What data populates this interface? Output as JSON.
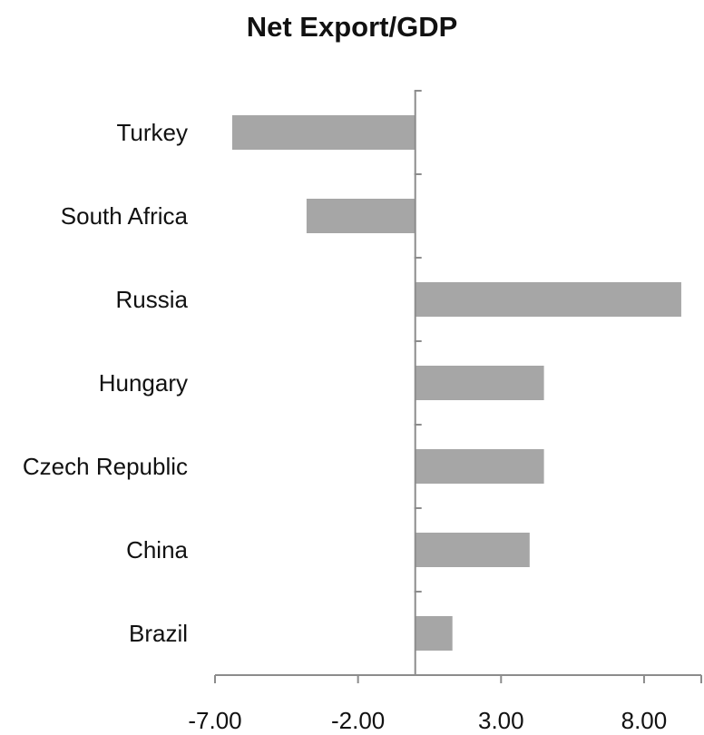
{
  "chart_data": {
    "type": "bar",
    "orientation": "horizontal",
    "title": "Net Export/GDP",
    "xlabel": "",
    "ylabel": "",
    "categories": [
      "Turkey",
      "South Africa",
      "Russia",
      "Hungary",
      "Czech Republic",
      "China",
      "Brazil"
    ],
    "values": [
      -6.4,
      -3.8,
      9.3,
      4.5,
      4.5,
      4.0,
      1.3
    ],
    "xlim": [
      -7.0,
      10.0
    ],
    "xticks": [
      "-7.00",
      "-2.00",
      "3.00",
      "8.00"
    ],
    "xtick_values": [
      -7.0,
      -2.0,
      3.0,
      8.0
    ],
    "bar_color": "#a6a6a6",
    "axis_color": "#8c8c8c",
    "grid": false,
    "legend": "none"
  }
}
